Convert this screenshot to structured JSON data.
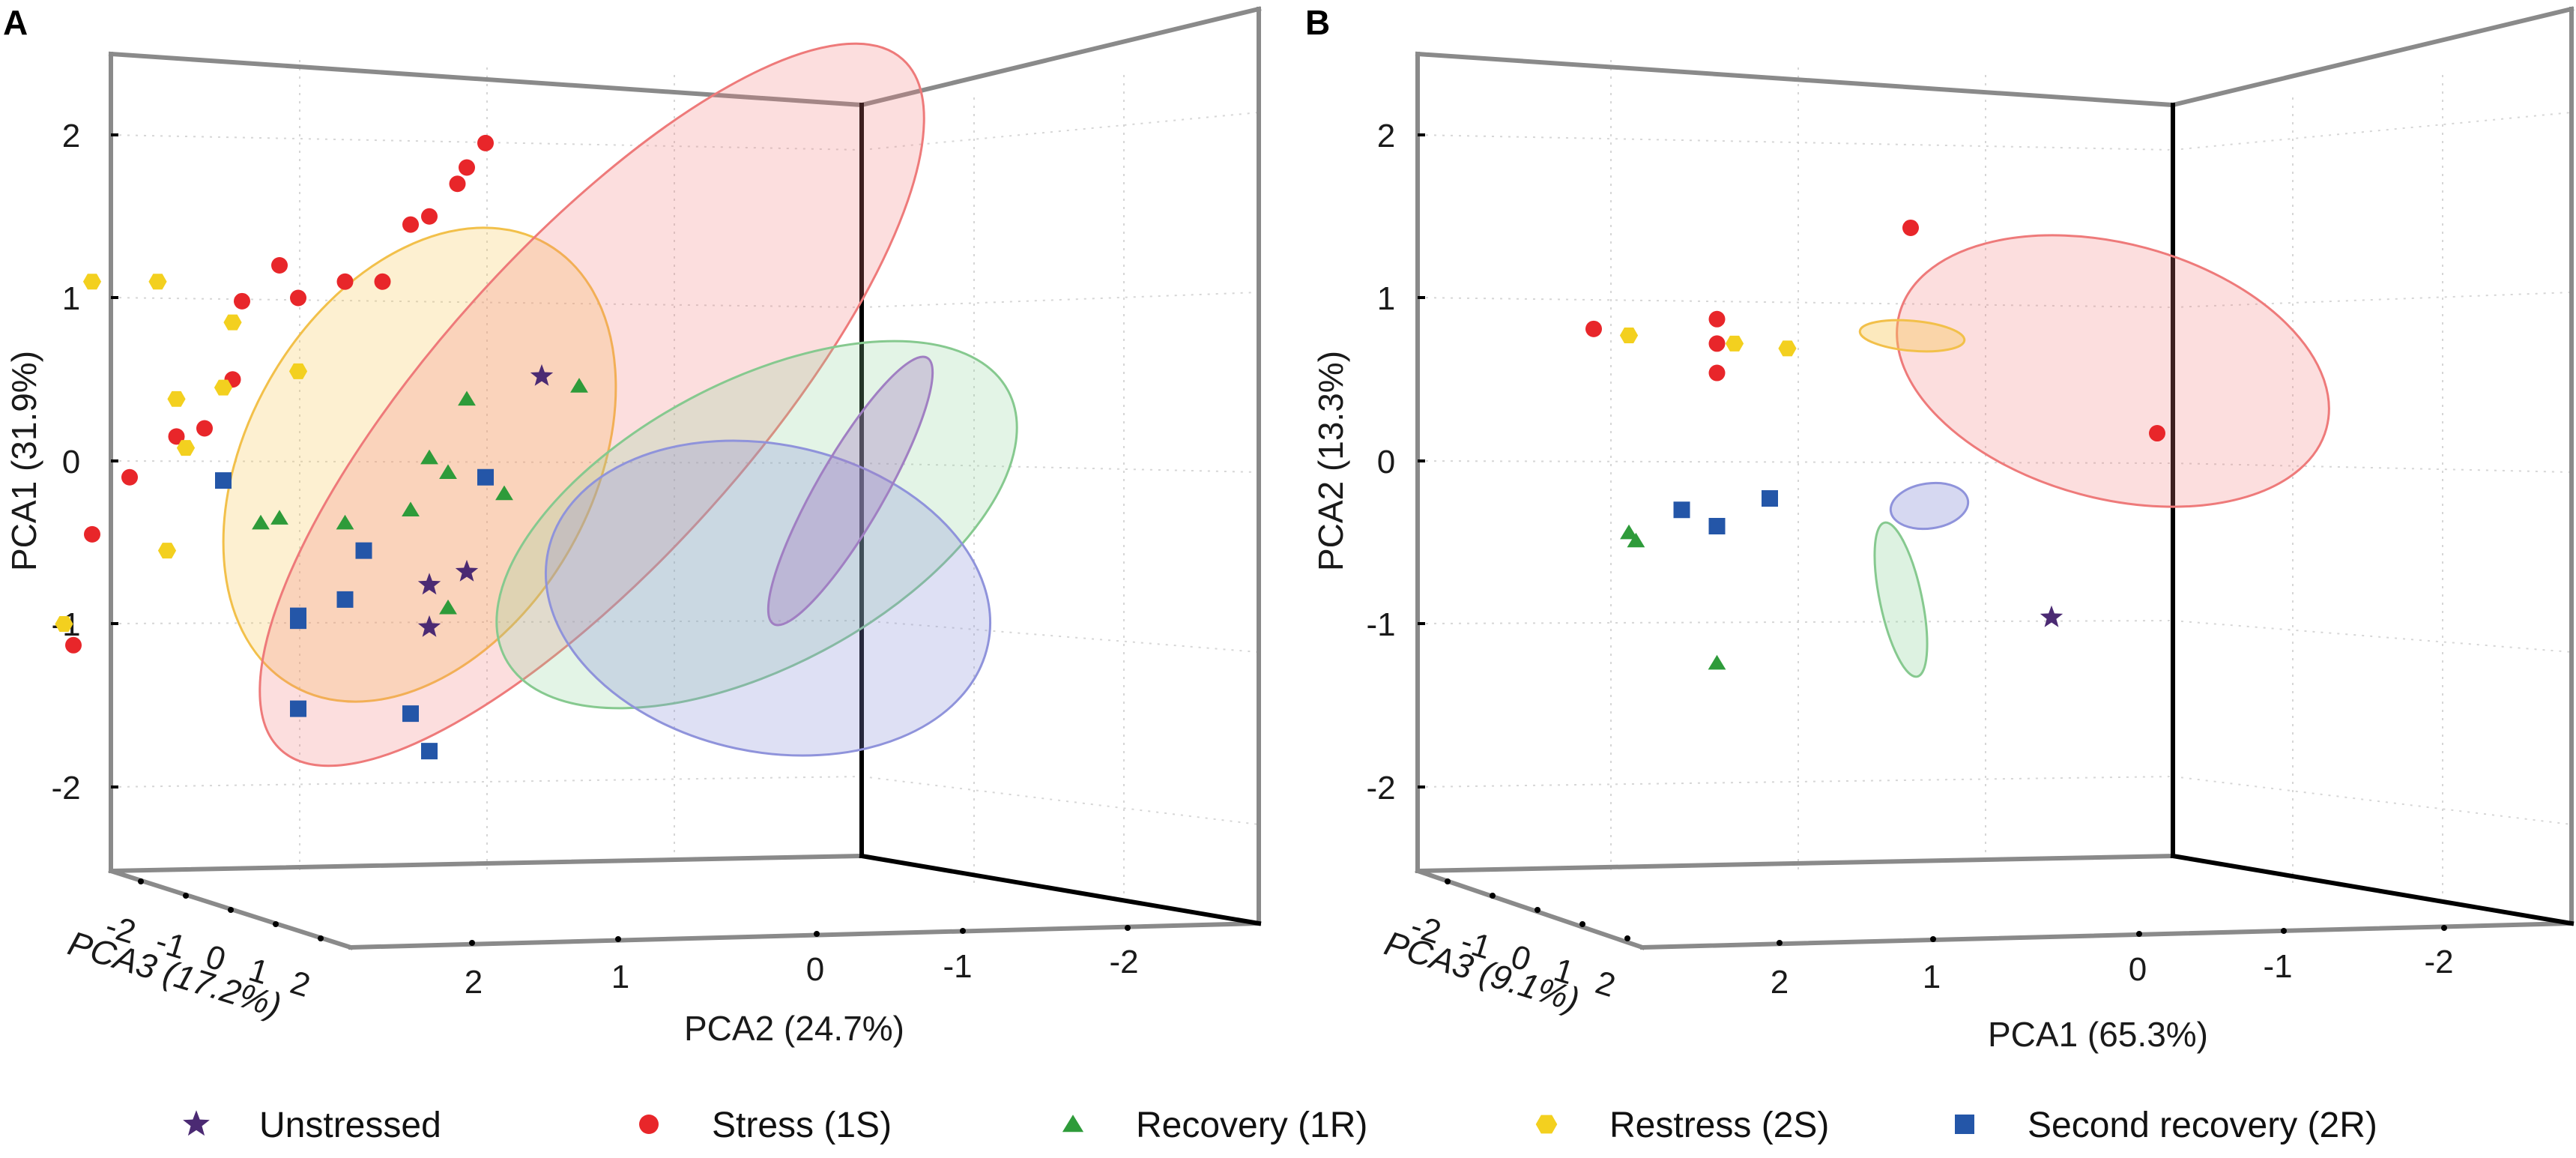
{
  "figure": {
    "legend": [
      {
        "key": "unstressed",
        "label": "Unstressed",
        "marker": "star",
        "color": "#4b2a73"
      },
      {
        "key": "stress",
        "label": "Stress (1S)",
        "marker": "circle",
        "color": "#e8262a"
      },
      {
        "key": "recovery",
        "label": "Recovery (1R)",
        "marker": "triangle",
        "color": "#2e9b3a"
      },
      {
        "key": "restress",
        "label": "Restress (2S)",
        "marker": "hexagon",
        "color": "#f3d01f"
      },
      {
        "key": "second_recovery",
        "label": "Second recovery (2R)",
        "marker": "square",
        "color": "#2456a8"
      }
    ]
  },
  "chart_data": [
    {
      "type": "scatter",
      "panel": "A",
      "title": "",
      "zlabel": "PCA1 (31.9%)",
      "xlabel": "PCA2 (24.7%)",
      "ylabel": "PCA3 (17.2%)",
      "zticks": [
        "2",
        "1",
        "0",
        "-1",
        "-2"
      ],
      "xticks": [
        "2",
        "1",
        "0",
        "-1",
        "-2"
      ],
      "yticks": [
        "-2",
        "-1",
        "0",
        "1",
        "2"
      ],
      "zlim": [
        -2.5,
        2.5
      ],
      "grid": true,
      "series": [
        {
          "name": "Stress (1S)",
          "key": "stress",
          "points": [
            [
              2.0,
              1.95
            ],
            [
              1.9,
              1.8
            ],
            [
              1.85,
              1.7
            ],
            [
              1.7,
              1.5
            ],
            [
              1.6,
              1.45
            ],
            [
              1.45,
              1.1
            ],
            [
              1.25,
              1.1
            ],
            [
              1.0,
              1.0
            ],
            [
              0.9,
              1.2
            ],
            [
              0.7,
              0.98
            ],
            [
              0.65,
              0.5
            ],
            [
              0.5,
              0.2
            ],
            [
              0.35,
              0.15
            ],
            [
              0.1,
              -0.1
            ],
            [
              -0.1,
              -0.45
            ],
            [
              -0.2,
              -1.13
            ]
          ]
        },
        {
          "name": "Restress (2S)",
          "key": "restress",
          "points": [
            [
              -0.1,
              1.1
            ],
            [
              0.25,
              1.1
            ],
            [
              0.65,
              0.85
            ],
            [
              0.6,
              0.45
            ],
            [
              1.0,
              0.55
            ],
            [
              0.35,
              0.38
            ],
            [
              0.4,
              0.08
            ],
            [
              0.3,
              -0.55
            ],
            [
              -0.25,
              -1.0
            ]
          ]
        },
        {
          "name": "Recovery (1R)",
          "key": "recovery",
          "points": [
            [
              1.9,
              0.38
            ],
            [
              1.7,
              0.02
            ],
            [
              1.8,
              -0.07
            ],
            [
              1.6,
              -0.3
            ],
            [
              1.25,
              -0.38
            ],
            [
              0.9,
              -0.35
            ],
            [
              0.8,
              -0.38
            ],
            [
              2.5,
              0.46
            ],
            [
              2.1,
              -0.2
            ],
            [
              1.8,
              -0.9
            ]
          ]
        },
        {
          "name": "Second recovery (2R)",
          "key": "second_recovery",
          "points": [
            [
              0.6,
              -0.12
            ],
            [
              2.0,
              -0.1
            ],
            [
              1.35,
              -0.55
            ],
            [
              1.25,
              -0.85
            ],
            [
              1.0,
              -0.95
            ],
            [
              1.0,
              -0.98
            ],
            [
              1.0,
              -1.52
            ],
            [
              1.6,
              -1.55
            ],
            [
              1.7,
              -1.78
            ]
          ]
        },
        {
          "name": "Unstressed",
          "key": "unstressed",
          "points": [
            [
              2.3,
              0.52
            ],
            [
              1.7,
              -0.76
            ],
            [
              1.9,
              -0.68
            ],
            [
              1.7,
              -1.02
            ]
          ]
        }
      ]
    },
    {
      "type": "scatter",
      "panel": "B",
      "title": "",
      "zlabel": "PCA2 (13.3%)",
      "xlabel": "PCA1 (65.3%)",
      "ylabel": "PCA3 (9.1%)",
      "zticks": [
        "2",
        "1",
        "0",
        "-1",
        "-2"
      ],
      "xticks": [
        "2",
        "1",
        "0",
        "-1",
        "-2"
      ],
      "yticks": [
        "-2",
        "-1",
        "0",
        "1",
        "2"
      ],
      "zlim": [
        -2.5,
        2.5
      ],
      "grid": true,
      "series": [
        {
          "name": "Stress (1S)",
          "key": "stress",
          "points": [
            [
              1.4,
              1.43
            ],
            [
              0.85,
              0.87
            ],
            [
              0.5,
              0.81
            ],
            [
              0.85,
              0.72
            ],
            [
              0.85,
              0.54
            ],
            [
              2.1,
              0.17
            ]
          ]
        },
        {
          "name": "Restress (2S)",
          "key": "restress",
          "points": [
            [
              0.6,
              0.77
            ],
            [
              0.9,
              0.72
            ],
            [
              1.05,
              0.69
            ]
          ]
        },
        {
          "name": "Second recovery (2R)",
          "key": "second_recovery",
          "points": [
            [
              1.0,
              -0.23
            ],
            [
              0.75,
              -0.3
            ],
            [
              0.85,
              -0.4
            ]
          ]
        },
        {
          "name": "Recovery (1R)",
          "key": "recovery",
          "points": [
            [
              0.6,
              -0.44
            ],
            [
              0.62,
              -0.49
            ],
            [
              0.85,
              -1.24
            ]
          ]
        },
        {
          "name": "Unstressed",
          "key": "unstressed",
          "points": [
            [
              1.8,
              -0.96
            ]
          ]
        }
      ]
    }
  ]
}
